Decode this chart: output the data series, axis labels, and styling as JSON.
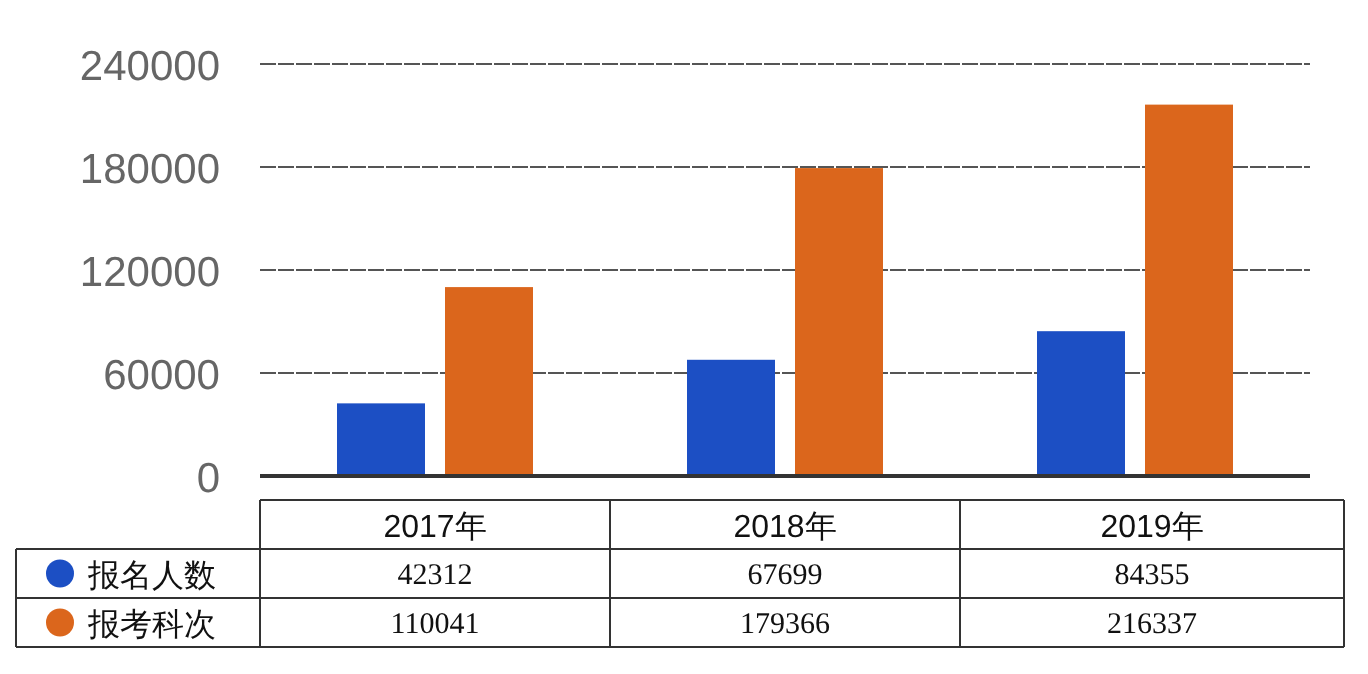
{
  "chart_data": {
    "type": "bar",
    "categories": [
      "2017年",
      "2018年",
      "2019年"
    ],
    "series": [
      {
        "name": "报名人数",
        "color": "#1c4fc4",
        "values": [
          42312,
          67699,
          84355
        ]
      },
      {
        "name": "报考科次",
        "color": "#db661c",
        "values": [
          110041,
          179366,
          216337
        ]
      }
    ],
    "ylim": [
      0,
      240000
    ],
    "yticks": [
      0,
      60000,
      120000,
      180000,
      240000
    ],
    "grid": "y",
    "data_labels": true,
    "legend": "bottom"
  }
}
